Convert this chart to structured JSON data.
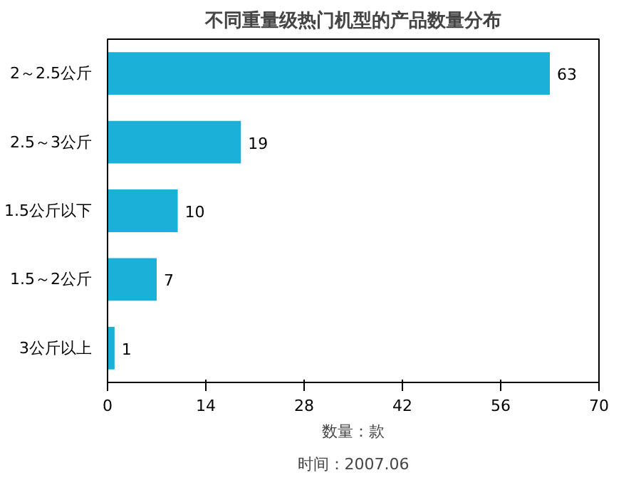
{
  "chart_data": {
    "type": "bar",
    "orientation": "horizontal",
    "title": "不同重量级热门机型的产品数量分布",
    "categories": [
      "2～2.5公斤",
      "2.5～3公斤",
      "1.5公斤以下",
      "1.5～2公斤",
      "3公斤以上"
    ],
    "values": [
      63,
      19,
      10,
      7,
      1
    ],
    "color": "#1ab0d8",
    "xlim": [
      0,
      70
    ],
    "xticks": [
      0,
      14,
      28,
      42,
      56,
      70
    ],
    "xlabel": "数量：款",
    "data_labels": true,
    "grid": false,
    "annotations": [
      "时间：2007.06"
    ]
  }
}
